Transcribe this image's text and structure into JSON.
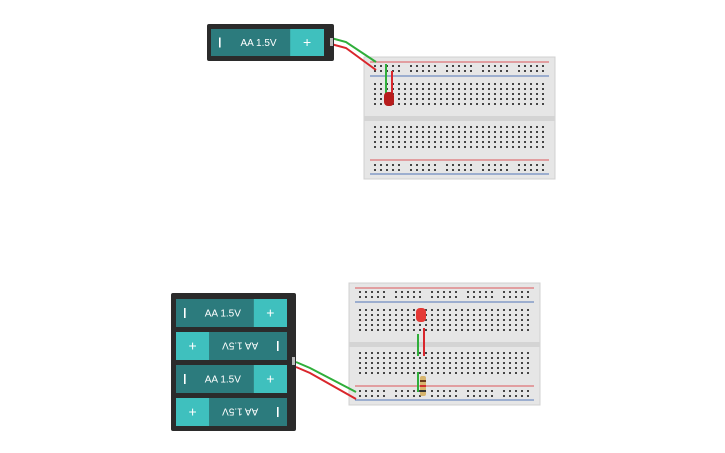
{
  "batteries": [
    {
      "cells": [
        {
          "label": "AA 1.5V",
          "plus": "+"
        }
      ]
    },
    {
      "cells": [
        {
          "label": "AA 1.5V",
          "plus": "+"
        },
        {
          "label": "AA 1.5V",
          "plus": "+"
        },
        {
          "label": "AA 1.5V",
          "plus": "+"
        },
        {
          "label": "AA 1.5V",
          "plus": "+"
        }
      ]
    }
  ]
}
